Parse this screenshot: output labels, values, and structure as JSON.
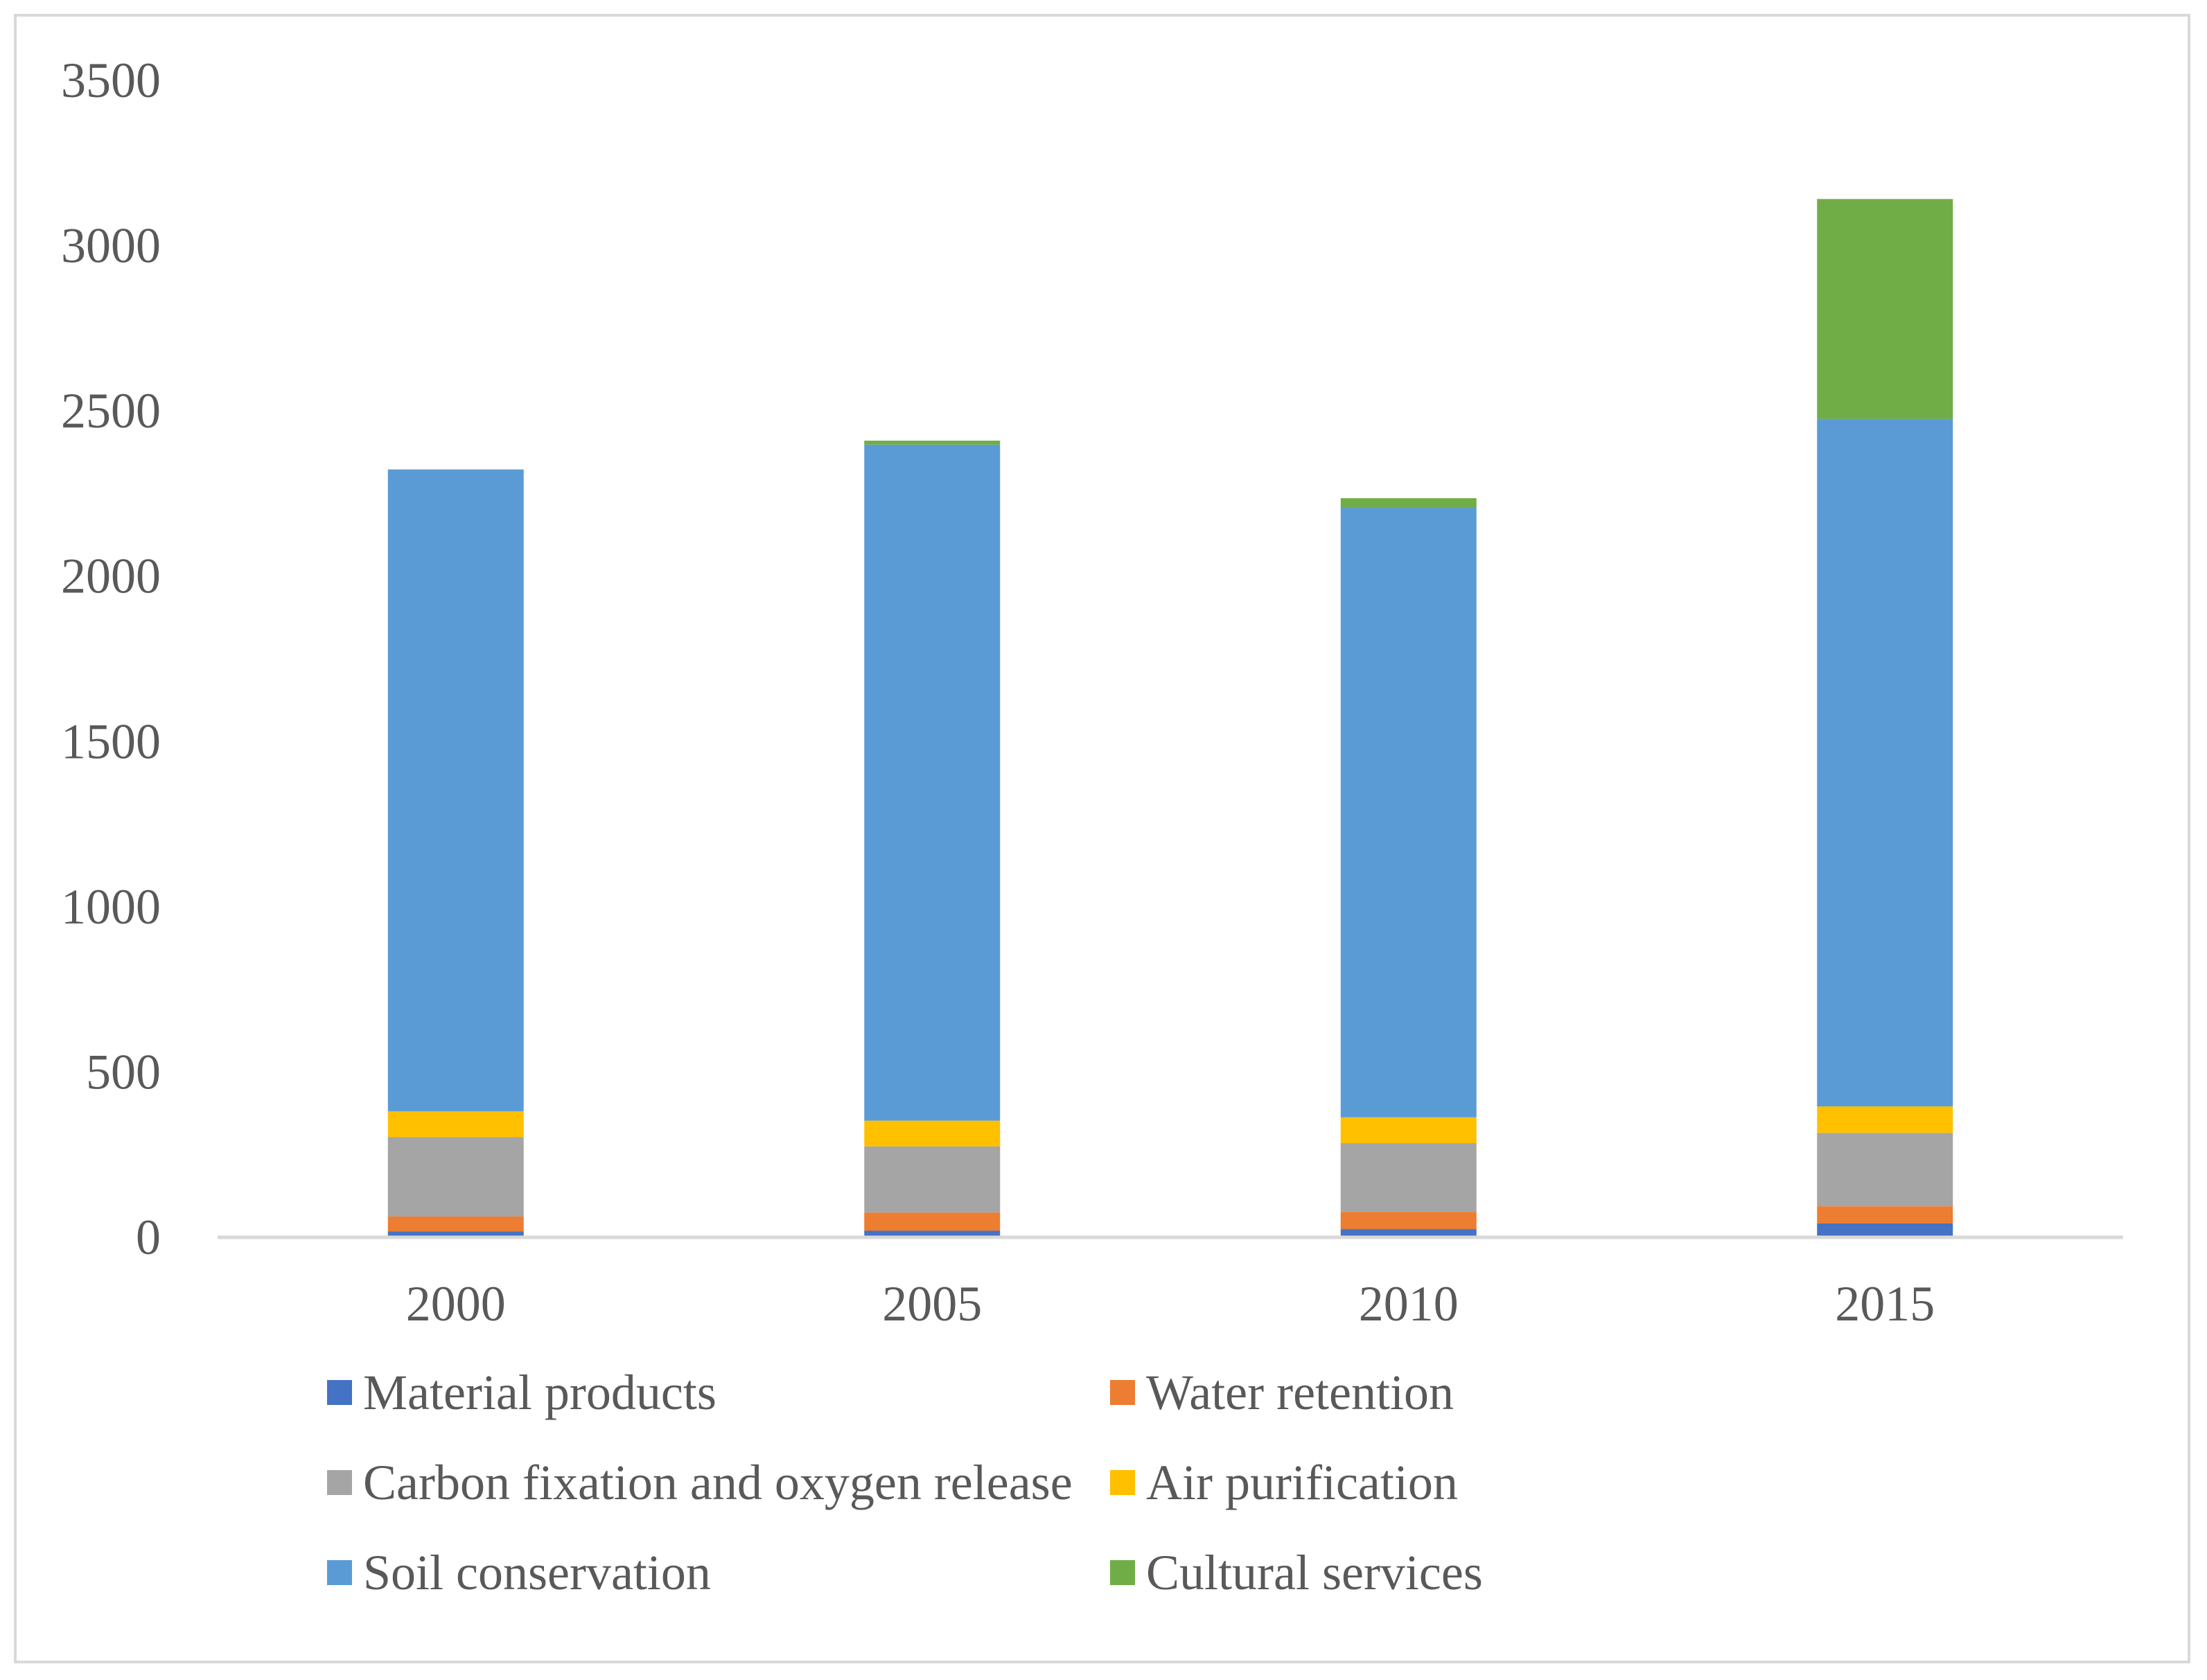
{
  "chart_data": {
    "type": "bar",
    "stacked": true,
    "title": "",
    "xlabel": "",
    "ylabel": "",
    "categories": [
      "2000",
      "2005",
      "2010",
      "2015"
    ],
    "ylim": [
      0,
      3500
    ],
    "yticks": [
      0,
      500,
      1000,
      1500,
      2000,
      2500,
      3000,
      3500
    ],
    "grid": false,
    "legend_position": "bottom",
    "series": [
      {
        "name": "Material products",
        "color": "#4472C4",
        "values": [
          18,
          20,
          25,
          42
        ]
      },
      {
        "name": "Water retention",
        "color": "#ED7D31",
        "values": [
          45,
          55,
          52,
          52
        ]
      },
      {
        "name": "Carbon fixation and oxygen release",
        "color": "#A5A5A5",
        "values": [
          240,
          200,
          208,
          222
        ]
      },
      {
        "name": "Air purification",
        "color": "#FFC000",
        "values": [
          78,
          78,
          78,
          80
        ]
      },
      {
        "name": "Soil conservation",
        "color": "#5B9BD5",
        "values": [
          1942,
          2045,
          1845,
          2080
        ]
      },
      {
        "name": "Cultural services",
        "color": "#70AD47",
        "values": [
          0,
          12,
          28,
          665
        ]
      }
    ]
  }
}
